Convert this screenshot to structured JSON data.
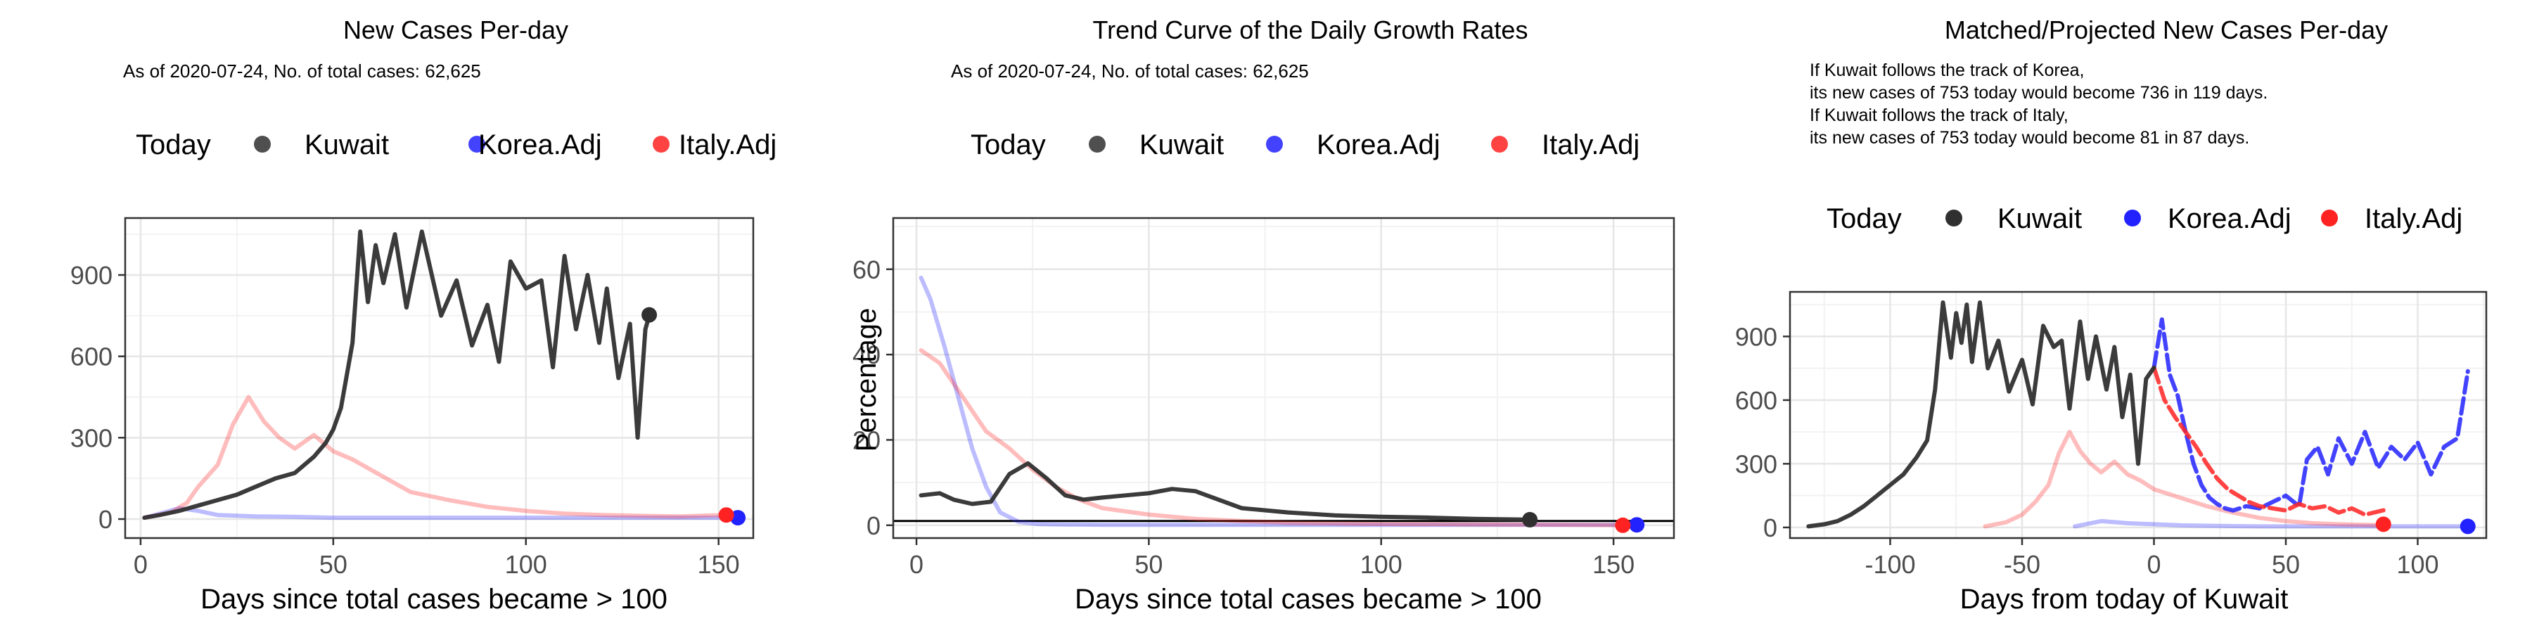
{
  "colors": {
    "kuwait": "#303030",
    "korea": "#2222ff",
    "italy": "#ff2222",
    "grid_major": "#e6e6e6",
    "grid_minor": "#f2f2f2",
    "panel_border": "#333333"
  },
  "chart_data": [
    {
      "type": "line",
      "title": "New Cases Per-day",
      "subtitle": "As of 2020-07-24, No. of total cases: 62,625",
      "legend": {
        "title": "Today",
        "entries": [
          "Kuwait",
          "Korea.Adj",
          "Italy.Adj"
        ],
        "position": "top"
      },
      "xlabel": "Days since total cases became > 100",
      "ylabel": "",
      "xlim": [
        -4,
        159
      ],
      "ylim": [
        -70,
        1110
      ],
      "xticks": [
        0,
        50,
        100,
        150
      ],
      "xtick_labels": [
        "0",
        "50",
        "100",
        "150"
      ],
      "yticks": [
        0,
        300,
        600,
        900
      ],
      "ytick_labels": [
        "0",
        "300",
        "600",
        "900"
      ],
      "grid": true,
      "series": [
        {
          "name": "Kuwait",
          "style": "solid",
          "x": [
            1,
            5,
            10,
            15,
            20,
            25,
            30,
            35,
            40,
            45,
            48,
            50,
            52,
            55,
            57,
            59,
            61,
            63,
            66,
            69,
            73,
            78,
            82,
            86,
            90,
            93,
            96,
            100,
            104,
            107,
            110,
            113,
            116,
            119,
            121,
            124,
            127,
            129,
            131,
            132
          ],
          "y": [
            5,
            15,
            30,
            50,
            70,
            90,
            120,
            150,
            170,
            230,
            280,
            330,
            410,
            650,
            1060,
            800,
            1010,
            870,
            1050,
            780,
            1060,
            750,
            880,
            640,
            790,
            580,
            950,
            850,
            880,
            560,
            970,
            700,
            900,
            650,
            850,
            520,
            720,
            300,
            700,
            750
          ],
          "today": {
            "x": 132,
            "y": 753
          }
        },
        {
          "name": "Korea.Adj",
          "style": "faded",
          "x": [
            1,
            5,
            10,
            15,
            20,
            30,
            40,
            50,
            60,
            80,
            100,
            120,
            140,
            155
          ],
          "y": [
            5,
            20,
            40,
            30,
            15,
            10,
            8,
            5,
            5,
            5,
            5,
            5,
            5,
            5
          ],
          "today": {
            "x": 155,
            "y": 5
          }
        },
        {
          "name": "Italy.Adj",
          "style": "faded",
          "x": [
            1,
            8,
            12,
            15,
            20,
            24,
            28,
            32,
            36,
            40,
            45,
            50,
            55,
            60,
            65,
            70,
            80,
            90,
            100,
            110,
            120,
            130,
            140,
            152
          ],
          "y": [
            5,
            25,
            60,
            120,
            200,
            350,
            450,
            360,
            300,
            260,
            310,
            250,
            220,
            180,
            140,
            100,
            70,
            45,
            30,
            20,
            15,
            12,
            10,
            15
          ],
          "today": {
            "x": 152,
            "y": 15
          }
        }
      ]
    },
    {
      "type": "line",
      "title": "Trend Curve of the Daily Growth Rates",
      "subtitle": "As of 2020-07-24, No. of total cases: 62,625",
      "legend": {
        "title": "Today",
        "entries": [
          "Kuwait",
          "Korea.Adj",
          "Italy.Adj"
        ],
        "position": "top"
      },
      "xlabel": "Days since total cases became > 100",
      "ylabel": "Percentage",
      "xlim": [
        -5,
        163
      ],
      "ylim": [
        -3,
        72
      ],
      "xticks": [
        0,
        50,
        100,
        150
      ],
      "xtick_labels": [
        "0",
        "50",
        "100",
        "150"
      ],
      "yticks": [
        0,
        20,
        40,
        60
      ],
      "ytick_labels": [
        "0",
        "20",
        "40",
        "60"
      ],
      "grid": true,
      "hline": 1,
      "series": [
        {
          "name": "Kuwait",
          "style": "solid",
          "x": [
            1,
            5,
            8,
            12,
            16,
            20,
            24,
            28,
            32,
            36,
            40,
            45,
            50,
            55,
            60,
            65,
            70,
            80,
            90,
            100,
            110,
            120,
            132
          ],
          "y": [
            7,
            7.5,
            6,
            5,
            5.5,
            12,
            14.5,
            11,
            7,
            6,
            6.5,
            7,
            7.5,
            8.5,
            8,
            6,
            4,
            3,
            2.3,
            2,
            1.8,
            1.5,
            1.3
          ],
          "today": {
            "x": 132,
            "y": 1.3
          }
        },
        {
          "name": "Korea.Adj",
          "style": "faded",
          "x": [
            1,
            3,
            6,
            9,
            12,
            15,
            18,
            22,
            26,
            30,
            40,
            60,
            100,
            155
          ],
          "y": [
            58,
            53,
            42,
            30,
            18,
            9,
            3,
            0.8,
            0.3,
            0.2,
            0.1,
            0.1,
            0.1,
            0.1
          ],
          "today": {
            "x": 155,
            "y": 0.1
          }
        },
        {
          "name": "Italy.Adj",
          "style": "faded",
          "x": [
            1,
            5,
            10,
            15,
            20,
            25,
            30,
            35,
            40,
            50,
            60,
            70,
            80,
            100,
            120,
            140,
            152
          ],
          "y": [
            41,
            38,
            30,
            22,
            18,
            13,
            9,
            6,
            4,
            2.5,
            1.5,
            1,
            0.6,
            0.3,
            0.2,
            0.1,
            0
          ],
          "today": {
            "x": 152,
            "y": 0
          }
        }
      ]
    },
    {
      "type": "line",
      "title": "Matched/Projected New Cases Per-day",
      "annotation": [
        "If Kuwait follows the track of Korea,",
        "its new cases of 753 today would become 736 in 119 days.",
        "If Kuwait follows the track of Italy,",
        "its new cases of 753 today would become 81 in 87 days."
      ],
      "legend": {
        "title": "Today",
        "entries": [
          "Kuwait",
          "Korea.Adj",
          "Italy.Adj"
        ],
        "position": "top"
      },
      "xlabel": "Days from today of Kuwait",
      "ylabel": "",
      "xlim": [
        -138,
        126
      ],
      "ylim": [
        -50,
        1110
      ],
      "xticks": [
        -100,
        -50,
        0,
        50,
        100
      ],
      "xtick_labels": [
        "-100",
        "-50",
        "0",
        "50",
        "100"
      ],
      "yticks": [
        0,
        300,
        600,
        900
      ],
      "ytick_labels": [
        "0",
        "300",
        "600",
        "900"
      ],
      "grid": true,
      "series": [
        {
          "name": "Kuwait",
          "style": "solid",
          "x": [
            -131,
            -125,
            -120,
            -115,
            -110,
            -105,
            -100,
            -95,
            -90,
            -86,
            -83,
            -80,
            -77,
            -75,
            -73,
            -71,
            -69,
            -66,
            -63,
            -59,
            -55,
            -50,
            -46,
            -42,
            -38,
            -35,
            -32,
            -28,
            -25,
            -22,
            -18,
            -15,
            -12,
            -9,
            -6,
            -3,
            0
          ],
          "y": [
            5,
            15,
            30,
            60,
            100,
            150,
            200,
            250,
            330,
            410,
            650,
            1060,
            800,
            1010,
            870,
            1050,
            780,
            1060,
            750,
            880,
            640,
            790,
            580,
            950,
            850,
            880,
            560,
            970,
            700,
            900,
            650,
            850,
            520,
            720,
            300,
            700,
            753
          ]
        },
        {
          "name": "Korea.Adj (projected)",
          "style": "dashed",
          "x": [
            0,
            3,
            6,
            9,
            12,
            15,
            18,
            21,
            24,
            27,
            30,
            35,
            40,
            45,
            50,
            55,
            58,
            62,
            66,
            70,
            75,
            80,
            85,
            90,
            95,
            100,
            105,
            110,
            115,
            119
          ],
          "y": [
            753,
            980,
            720,
            620,
            450,
            300,
            200,
            140,
            110,
            90,
            80,
            100,
            90,
            120,
            150,
            100,
            320,
            380,
            250,
            420,
            300,
            450,
            280,
            380,
            320,
            400,
            250,
            380,
            420,
            736
          ],
          "today": {
            "x": 119,
            "y": 5
          }
        },
        {
          "name": "Korea.Adj (matched)",
          "style": "faded",
          "x": [
            -30,
            -20,
            -10,
            0,
            10,
            20,
            40,
            60,
            80,
            100,
            119
          ],
          "y": [
            5,
            30,
            20,
            15,
            10,
            8,
            5,
            5,
            5,
            5,
            5
          ]
        },
        {
          "name": "Italy.Adj (projected)",
          "style": "dashed",
          "x": [
            0,
            4,
            8,
            12,
            16,
            20,
            24,
            28,
            32,
            36,
            40,
            45,
            50,
            55,
            60,
            65,
            70,
            75,
            80,
            87
          ],
          "y": [
            753,
            600,
            520,
            450,
            380,
            300,
            230,
            180,
            150,
            120,
            100,
            90,
            80,
            110,
            90,
            100,
            70,
            90,
            60,
            81
          ],
          "today": {
            "x": 87,
            "y": 15
          }
        },
        {
          "name": "Italy.Adj (matched)",
          "style": "faded",
          "x": [
            -64,
            -56,
            -50,
            -45,
            -40,
            -36,
            -32,
            -28,
            -24,
            -20,
            -15,
            -10,
            -5,
            0,
            10,
            20,
            30,
            40,
            50,
            60,
            70,
            80,
            87
          ],
          "y": [
            5,
            25,
            60,
            120,
            200,
            350,
            450,
            360,
            300,
            260,
            310,
            250,
            220,
            180,
            140,
            100,
            70,
            45,
            30,
            20,
            15,
            12,
            10
          ]
        }
      ]
    }
  ]
}
